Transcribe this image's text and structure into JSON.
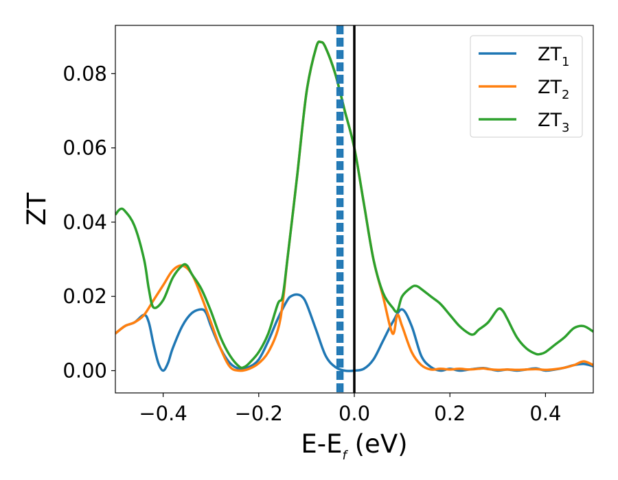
{
  "chart_data": {
    "type": "line",
    "title": "",
    "xlabel_main": "E-E",
    "xlabel_sub": "f",
    "xlabel_unit": " (eV)",
    "ylabel": "ZT",
    "xlim": [
      -0.5,
      0.5
    ],
    "ylim": [
      -0.006,
      0.093
    ],
    "grid": false,
    "legend_position": "top-right",
    "x_ticks": [
      {
        "value": -0.4,
        "label": "−0.4"
      },
      {
        "value": -0.2,
        "label": "−0.2"
      },
      {
        "value": 0.0,
        "label": "0.0"
      },
      {
        "value": 0.2,
        "label": "0.2"
      },
      {
        "value": 0.4,
        "label": "0.4"
      }
    ],
    "y_ticks": [
      {
        "value": 0.0,
        "label": "0.00"
      },
      {
        "value": 0.02,
        "label": "0.02"
      },
      {
        "value": 0.04,
        "label": "0.04"
      },
      {
        "value": 0.06,
        "label": "0.06"
      },
      {
        "value": 0.08,
        "label": "0.08"
      }
    ],
    "vertical_lines": [
      {
        "x": 0.0,
        "color": "#000000",
        "style": "solid"
      },
      {
        "x": -0.03,
        "color": "#1f77b4",
        "style": "dashed"
      },
      {
        "x": -0.025,
        "color": "#1f77b4",
        "style": "dashed"
      },
      {
        "x": -0.035,
        "color": "#1f77b4",
        "style": "dashed"
      }
    ],
    "series": [
      {
        "name_main": "ZT",
        "name_sub": "1",
        "color": "#1f77b4",
        "x": [
          -0.5,
          -0.48,
          -0.46,
          -0.44,
          -0.43,
          -0.42,
          -0.41,
          -0.4,
          -0.39,
          -0.38,
          -0.36,
          -0.34,
          -0.32,
          -0.31,
          -0.3,
          -0.28,
          -0.26,
          -0.24,
          -0.22,
          -0.2,
          -0.18,
          -0.16,
          -0.14,
          -0.13,
          -0.12,
          -0.11,
          -0.1,
          -0.08,
          -0.06,
          -0.04,
          -0.02,
          0.0,
          0.02,
          0.04,
          0.06,
          0.08,
          0.1,
          0.12,
          0.14,
          0.16,
          0.18,
          0.2,
          0.22,
          0.24,
          0.26,
          0.27,
          0.28,
          0.3,
          0.32,
          0.34,
          0.36,
          0.38,
          0.4,
          0.42,
          0.44,
          0.46,
          0.48,
          0.5
        ],
        "y": [
          0.01,
          0.012,
          0.013,
          0.015,
          0.013,
          0.007,
          0.002,
          0.0,
          0.002,
          0.006,
          0.012,
          0.0155,
          0.0165,
          0.0155,
          0.012,
          0.006,
          0.002,
          0.0005,
          0.001,
          0.003,
          0.008,
          0.014,
          0.019,
          0.0202,
          0.0205,
          0.02,
          0.018,
          0.011,
          0.004,
          0.001,
          0.0,
          0.0,
          0.0005,
          0.003,
          0.008,
          0.013,
          0.0165,
          0.012,
          0.004,
          0.001,
          0.0,
          0.0005,
          0.0,
          0.0003,
          0.0006,
          0.0007,
          0.0005,
          0.0,
          0.0003,
          0.0,
          0.0003,
          0.0006,
          0.0,
          0.0003,
          0.0008,
          0.0015,
          0.0018,
          0.0012
        ]
      },
      {
        "name_main": "ZT",
        "name_sub": "2",
        "color": "#ff7f0e",
        "x": [
          -0.5,
          -0.48,
          -0.46,
          -0.44,
          -0.42,
          -0.4,
          -0.38,
          -0.36,
          -0.34,
          -0.32,
          -0.3,
          -0.28,
          -0.26,
          -0.24,
          -0.22,
          -0.2,
          -0.18,
          -0.16,
          -0.15,
          -0.14,
          -0.12,
          -0.1,
          -0.08,
          -0.07,
          -0.06,
          -0.04,
          -0.02,
          0.0,
          0.02,
          0.04,
          0.06,
          0.08,
          0.09,
          0.1,
          0.12,
          0.14,
          0.16,
          0.18,
          0.2,
          0.22,
          0.24,
          0.26,
          0.27,
          0.28,
          0.3,
          0.32,
          0.34,
          0.36,
          0.38,
          0.4,
          0.42,
          0.44,
          0.46,
          0.48,
          0.5
        ],
        "y": [
          0.01,
          0.012,
          0.013,
          0.015,
          0.019,
          0.023,
          0.027,
          0.0283,
          0.026,
          0.02,
          0.013,
          0.006,
          0.001,
          0.0,
          0.0005,
          0.002,
          0.005,
          0.011,
          0.018,
          0.03,
          0.052,
          0.075,
          0.087,
          0.0885,
          0.087,
          0.08,
          0.07,
          0.06,
          0.045,
          0.03,
          0.02,
          0.01,
          0.015,
          0.012,
          0.005,
          0.0015,
          0.0003,
          0.0005,
          0.0003,
          0.0005,
          0.0003,
          0.0005,
          0.0006,
          0.0004,
          0.0002,
          0.0003,
          0.0002,
          0.0003,
          0.0004,
          0.0002,
          0.0004,
          0.0008,
          0.0015,
          0.0025,
          0.0015
        ]
      },
      {
        "name_main": "ZT",
        "name_sub": "3",
        "color": "#2ca02c",
        "x": [
          -0.5,
          -0.49,
          -0.48,
          -0.46,
          -0.44,
          -0.43,
          -0.42,
          -0.4,
          -0.38,
          -0.36,
          -0.35,
          -0.34,
          -0.32,
          -0.3,
          -0.28,
          -0.26,
          -0.24,
          -0.23,
          -0.22,
          -0.2,
          -0.18,
          -0.16,
          -0.15,
          -0.14,
          -0.12,
          -0.1,
          -0.08,
          -0.07,
          -0.06,
          -0.04,
          -0.02,
          0.0,
          0.02,
          0.04,
          0.06,
          0.08,
          0.09,
          0.1,
          0.12,
          0.13,
          0.14,
          0.16,
          0.18,
          0.2,
          0.22,
          0.24,
          0.25,
          0.26,
          0.28,
          0.3,
          0.31,
          0.32,
          0.34,
          0.36,
          0.38,
          0.39,
          0.4,
          0.42,
          0.44,
          0.46,
          0.48,
          0.5
        ],
        "y": [
          0.042,
          0.0435,
          0.043,
          0.039,
          0.03,
          0.022,
          0.017,
          0.019,
          0.025,
          0.0283,
          0.0283,
          0.026,
          0.022,
          0.016,
          0.009,
          0.004,
          0.001,
          0.001,
          0.002,
          0.005,
          0.01,
          0.018,
          0.02,
          0.03,
          0.052,
          0.075,
          0.087,
          0.0885,
          0.087,
          0.08,
          0.07,
          0.06,
          0.045,
          0.03,
          0.021,
          0.017,
          0.016,
          0.02,
          0.0225,
          0.0228,
          0.022,
          0.02,
          0.018,
          0.015,
          0.012,
          0.01,
          0.0098,
          0.011,
          0.013,
          0.0165,
          0.0162,
          0.014,
          0.009,
          0.006,
          0.0045,
          0.0045,
          0.005,
          0.007,
          0.009,
          0.0115,
          0.012,
          0.0105
        ]
      }
    ]
  }
}
